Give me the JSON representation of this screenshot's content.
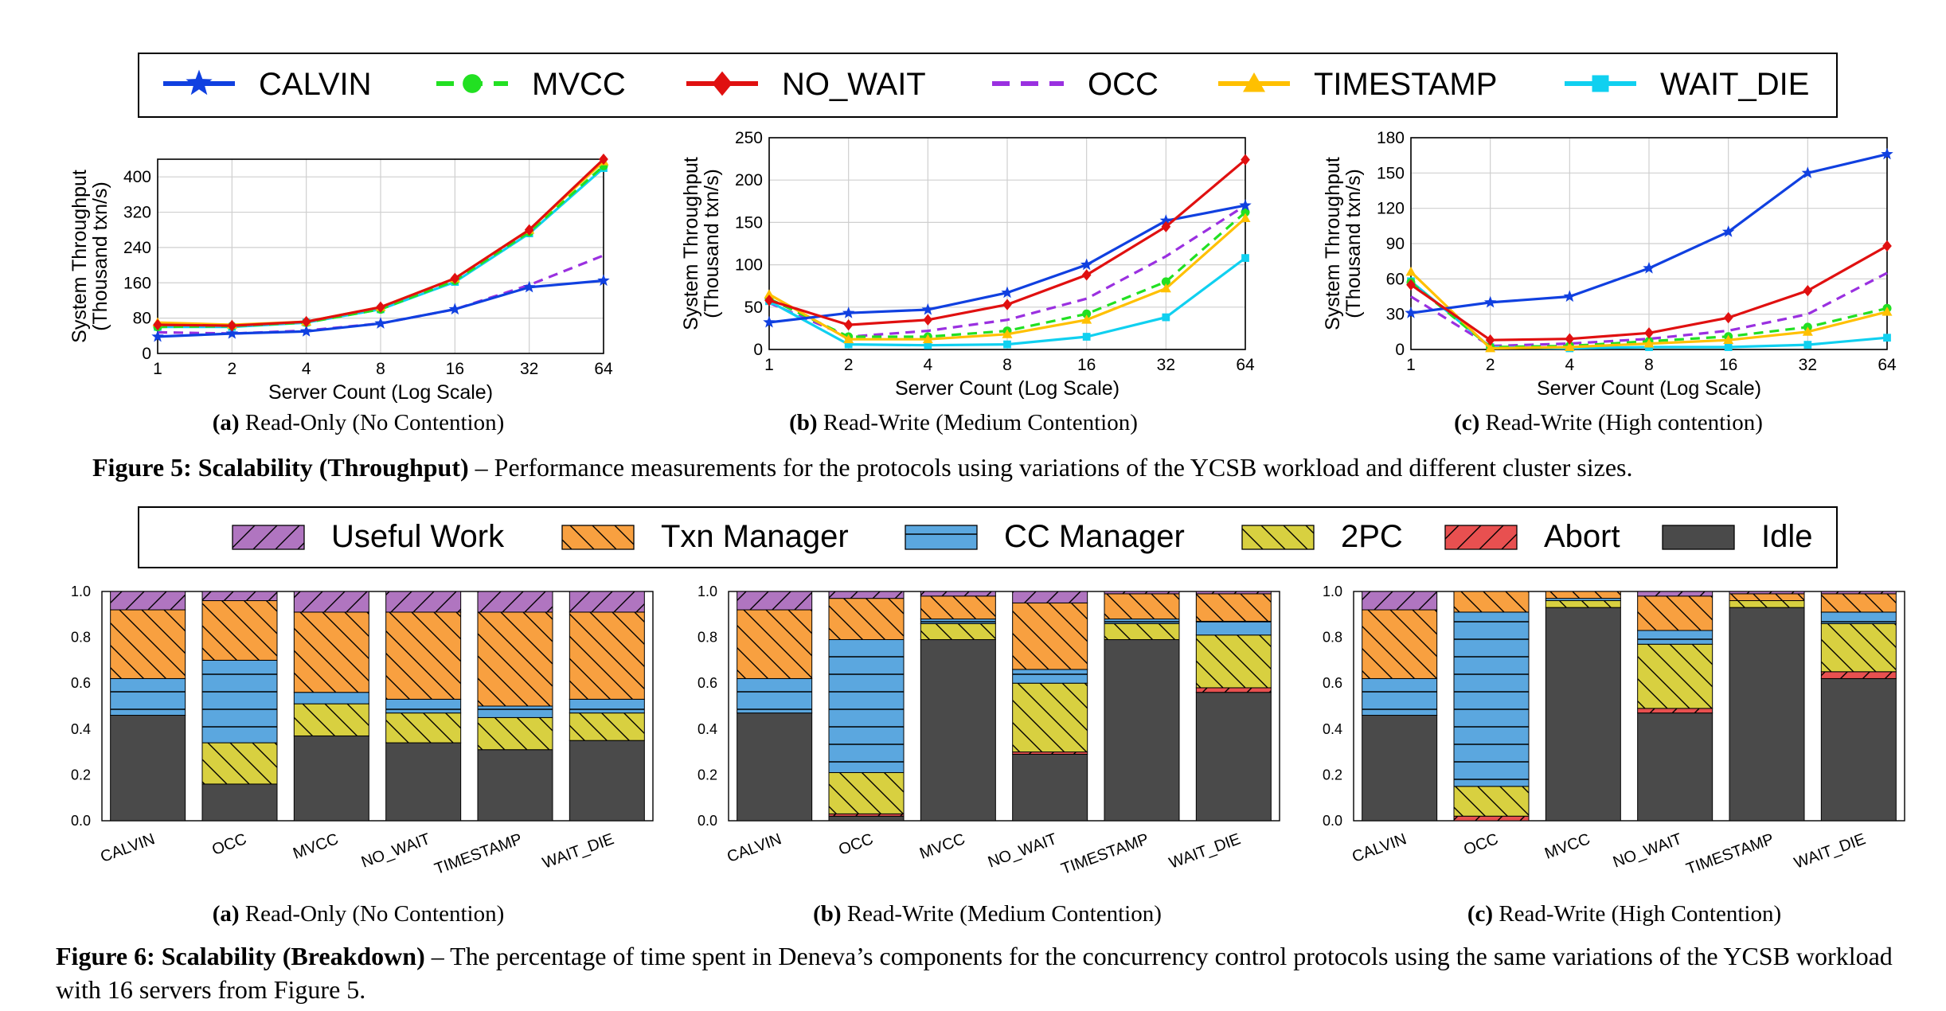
{
  "legend1": [
    {
      "name": "CALVIN",
      "color": "#1040e0",
      "marker": "star",
      "dash": false
    },
    {
      "name": "MVCC",
      "color": "#22e022",
      "marker": "circle",
      "dash": true
    },
    {
      "name": "NO_WAIT",
      "color": "#e01010",
      "marker": "diamond",
      "dash": false
    },
    {
      "name": "OCC",
      "color": "#9a30e0",
      "marker": "none",
      "dash": true
    },
    {
      "name": "TIMESTAMP",
      "color": "#ffc000",
      "marker": "triangle",
      "dash": false
    },
    {
      "name": "WAIT_DIE",
      "color": "#10d0f0",
      "marker": "square",
      "dash": false
    }
  ],
  "legend2": [
    {
      "name": "Useful Work",
      "color": "#b075c0",
      "hatch": "slash"
    },
    {
      "name": "Txn Manager",
      "color": "#f8a040",
      "hatch": "backslash"
    },
    {
      "name": "CC Manager",
      "color": "#5ba7df",
      "hatch": "horizontal"
    },
    {
      "name": "2PC",
      "color": "#d8d040",
      "hatch": "backslash"
    },
    {
      "name": "Abort",
      "color": "#e85050",
      "hatch": "slash"
    },
    {
      "name": "Idle",
      "color": "#4a4a4a",
      "hatch": "none"
    }
  ],
  "captions": {
    "fig5_sub": [
      {
        "letter": "(a)",
        "text": " Read-Only (No Contention)"
      },
      {
        "letter": "(b)",
        "text": " Read-Write (Medium Contention)"
      },
      {
        "letter": "(c)",
        "text": " Read-Write (High contention)"
      }
    ],
    "fig6_sub": [
      {
        "letter": "(a)",
        "text": " Read-Only (No Contention)"
      },
      {
        "letter": "(b)",
        "text": " Read-Write (Medium Contention)"
      },
      {
        "letter": "(c)",
        "text": " Read-Write (High Contention)"
      }
    ],
    "fig5_bold": "Figure 5: Scalability (Throughput)",
    "fig5_text": " – Performance measurements for the protocols using variations of the YCSB workload and different cluster sizes.",
    "fig6_bold": "Figure 6: Scalability (Breakdown)",
    "fig6_text": " – The percentage of time spent in Deneva’s components for the concurrency control protocols using the same variations of the YCSB workload with 16 servers from Figure 5."
  },
  "chart_data": [
    {
      "type": "line",
      "title": "",
      "xlabel": "Server Count (Log Scale)",
      "ylabel": "System Throughput (Thousand txn/s)",
      "x": [
        1,
        2,
        4,
        8,
        16,
        32,
        64
      ],
      "x_scale": "log",
      "ylim": [
        0,
        440
      ],
      "yticks": [
        0,
        80,
        160,
        240,
        320,
        400
      ],
      "grid": true,
      "series": [
        {
          "name": "CALVIN",
          "values": [
            38,
            45,
            50,
            68,
            100,
            150,
            165
          ]
        },
        {
          "name": "MVCC",
          "values": [
            60,
            62,
            70,
            100,
            165,
            275,
            425
          ]
        },
        {
          "name": "NO_WAIT",
          "values": [
            65,
            63,
            72,
            105,
            170,
            280,
            440
          ]
        },
        {
          "name": "OCC",
          "values": [
            48,
            45,
            52,
            68,
            100,
            155,
            222
          ]
        },
        {
          "name": "TIMESTAMP",
          "values": [
            70,
            65,
            72,
            105,
            170,
            280,
            435
          ]
        },
        {
          "name": "WAIT_DIE",
          "values": [
            60,
            60,
            70,
            100,
            162,
            272,
            420
          ]
        }
      ]
    },
    {
      "type": "line",
      "title": "",
      "xlabel": "Server Count (Log Scale)",
      "ylabel": "System Throughput (Thousand txn/s)",
      "x": [
        1,
        2,
        4,
        8,
        16,
        32,
        64
      ],
      "x_scale": "log",
      "ylim": [
        0,
        250
      ],
      "yticks": [
        0,
        50,
        100,
        150,
        200,
        250
      ],
      "grid": true,
      "series": [
        {
          "name": "CALVIN",
          "values": [
            32,
            43,
            47,
            67,
            100,
            152,
            170
          ]
        },
        {
          "name": "MVCC",
          "values": [
            60,
            15,
            15,
            22,
            42,
            80,
            162
          ]
        },
        {
          "name": "NO_WAIT",
          "values": [
            58,
            29,
            35,
            53,
            88,
            145,
            224
          ]
        },
        {
          "name": "OCC",
          "values": [
            55,
            15,
            22,
            35,
            60,
            110,
            170
          ]
        },
        {
          "name": "TIMESTAMP",
          "values": [
            65,
            12,
            12,
            18,
            35,
            72,
            155
          ]
        },
        {
          "name": "WAIT_DIE",
          "values": [
            57,
            6,
            5,
            6,
            15,
            38,
            108
          ]
        }
      ]
    },
    {
      "type": "line",
      "title": "",
      "xlabel": "Server Count (Log Scale)",
      "ylabel": "System Throughput (Thousand txn/s)",
      "x": [
        1,
        2,
        4,
        8,
        16,
        32,
        64
      ],
      "x_scale": "log",
      "ylim": [
        0,
        180
      ],
      "yticks": [
        0,
        30,
        60,
        90,
        120,
        150,
        180
      ],
      "grid": true,
      "series": [
        {
          "name": "CALVIN",
          "values": [
            31,
            40,
            45,
            69,
            100,
            150,
            166
          ]
        },
        {
          "name": "MVCC",
          "values": [
            57,
            2,
            3,
            7,
            11,
            19,
            35
          ]
        },
        {
          "name": "NO_WAIT",
          "values": [
            55,
            8,
            9,
            14,
            27,
            50,
            88
          ]
        },
        {
          "name": "OCC",
          "values": [
            45,
            3,
            5,
            9,
            16,
            30,
            65
          ]
        },
        {
          "name": "TIMESTAMP",
          "values": [
            66,
            1,
            2,
            5,
            8,
            15,
            32
          ]
        },
        {
          "name": "WAIT_DIE",
          "values": [
            58,
            2,
            1,
            2,
            2,
            4,
            10
          ]
        }
      ]
    },
    {
      "type": "bar",
      "stacked": true,
      "title": "",
      "categories": [
        "CALVIN",
        "OCC",
        "MVCC",
        "NO_WAIT",
        "TIMESTAMP",
        "WAIT_DIE"
      ],
      "ylim": [
        0,
        1.0
      ],
      "yticks": [
        "0.0",
        "0.2",
        "0.4",
        "0.6",
        "0.8",
        "1.0"
      ],
      "series": [
        {
          "name": "Idle",
          "values": [
            0.46,
            0.16,
            0.37,
            0.34,
            0.31,
            0.35
          ]
        },
        {
          "name": "Abort",
          "values": [
            0.0,
            0.0,
            0.0,
            0.0,
            0.0,
            0.0
          ]
        },
        {
          "name": "2PC",
          "values": [
            0.0,
            0.18,
            0.14,
            0.13,
            0.14,
            0.12
          ]
        },
        {
          "name": "CC Manager",
          "values": [
            0.16,
            0.36,
            0.05,
            0.06,
            0.05,
            0.06
          ]
        },
        {
          "name": "Txn Manager",
          "values": [
            0.3,
            0.26,
            0.35,
            0.38,
            0.41,
            0.38
          ]
        },
        {
          "name": "Useful Work",
          "values": [
            0.08,
            0.04,
            0.09,
            0.09,
            0.09,
            0.09
          ]
        }
      ]
    },
    {
      "type": "bar",
      "stacked": true,
      "title": "",
      "categories": [
        "CALVIN",
        "OCC",
        "MVCC",
        "NO_WAIT",
        "TIMESTAMP",
        "WAIT_DIE"
      ],
      "ylim": [
        0,
        1.0
      ],
      "yticks": [
        "0.0",
        "0.2",
        "0.4",
        "0.6",
        "0.8",
        "1.0"
      ],
      "series": [
        {
          "name": "Idle",
          "values": [
            0.47,
            0.02,
            0.79,
            0.29,
            0.79,
            0.56
          ]
        },
        {
          "name": "Abort",
          "values": [
            0.0,
            0.01,
            0.0,
            0.01,
            0.0,
            0.02
          ]
        },
        {
          "name": "2PC",
          "values": [
            0.0,
            0.18,
            0.07,
            0.3,
            0.07,
            0.23
          ]
        },
        {
          "name": "CC Manager",
          "values": [
            0.15,
            0.58,
            0.02,
            0.06,
            0.02,
            0.06
          ]
        },
        {
          "name": "Txn Manager",
          "values": [
            0.3,
            0.18,
            0.1,
            0.29,
            0.11,
            0.12
          ]
        },
        {
          "name": "Useful Work",
          "values": [
            0.08,
            0.03,
            0.02,
            0.05,
            0.01,
            0.01
          ]
        }
      ]
    },
    {
      "type": "bar",
      "stacked": true,
      "title": "",
      "categories": [
        "CALVIN",
        "OCC",
        "MVCC",
        "NO_WAIT",
        "TIMESTAMP",
        "WAIT_DIE"
      ],
      "ylim": [
        0,
        1.0
      ],
      "yticks": [
        "0.0",
        "0.2",
        "0.4",
        "0.6",
        "0.8",
        "1.0"
      ],
      "series": [
        {
          "name": "Idle",
          "values": [
            0.46,
            0.0,
            0.93,
            0.47,
            0.93,
            0.62
          ]
        },
        {
          "name": "Abort",
          "values": [
            0.0,
            0.02,
            0.0,
            0.02,
            0.0,
            0.03
          ]
        },
        {
          "name": "2PC",
          "values": [
            0.0,
            0.13,
            0.03,
            0.28,
            0.03,
            0.21
          ]
        },
        {
          "name": "CC Manager",
          "values": [
            0.16,
            0.76,
            0.01,
            0.06,
            0.0,
            0.05
          ]
        },
        {
          "name": "Txn Manager",
          "values": [
            0.3,
            0.09,
            0.03,
            0.15,
            0.03,
            0.08
          ]
        },
        {
          "name": "Useful Work",
          "values": [
            0.08,
            0.0,
            0.0,
            0.02,
            0.01,
            0.01
          ]
        }
      ]
    }
  ]
}
